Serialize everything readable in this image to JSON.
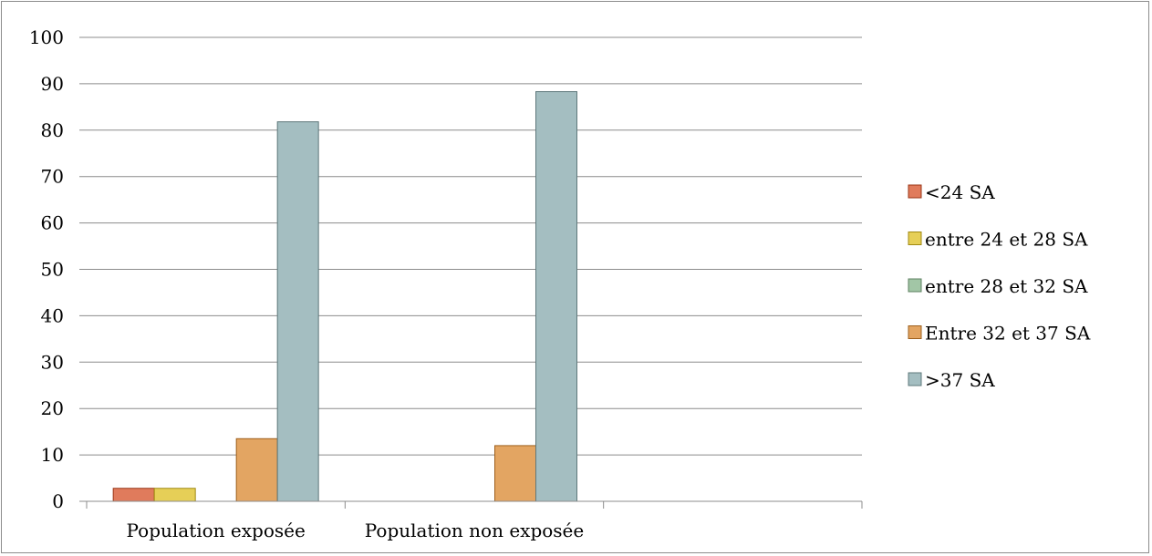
{
  "chart_data": {
    "type": "bar",
    "title": "",
    "xlabel": "",
    "ylabel": "",
    "ylim": [
      0,
      100
    ],
    "yticks": [
      0,
      10,
      20,
      30,
      40,
      50,
      60,
      70,
      80,
      90,
      100
    ],
    "grid": true,
    "legend_position": "right",
    "categories": [
      "Population exposée",
      "Population non exposée"
    ],
    "series": [
      {
        "name": "<24 SA",
        "color": "#e07b5c",
        "values": [
          2.8,
          0
        ]
      },
      {
        "name": "entre 24 et 28 SA",
        "color": "#e6cf57",
        "values": [
          2.8,
          0
        ]
      },
      {
        "name": "entre 28 et 32 SA",
        "color": "#a2c6a6",
        "values": [
          0,
          0
        ]
      },
      {
        "name": "Entre 32 et 37 SA",
        "color": "#e3a562",
        "values": [
          13.5,
          12
        ]
      },
      {
        "name": ">37 SA",
        "color": "#a4bec1",
        "values": [
          81.8,
          88.3
        ]
      }
    ]
  }
}
